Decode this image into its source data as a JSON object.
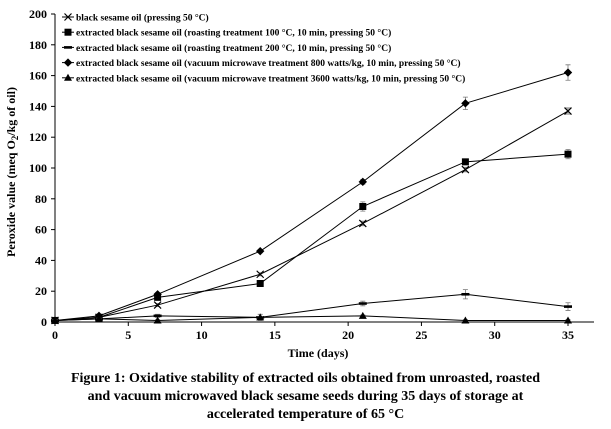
{
  "chart_data": {
    "type": "line",
    "xlabel": "Time (days)",
    "ylabel": "Peroxide value (meq O₂/kg of oil)",
    "xlim": [
      0,
      35
    ],
    "ylim": [
      0,
      200
    ],
    "x_ticks": [
      0,
      5,
      10,
      15,
      20,
      25,
      30,
      35
    ],
    "y_ticks": [
      0,
      20,
      40,
      60,
      80,
      100,
      120,
      140,
      160,
      180,
      200
    ],
    "grid": false,
    "legend_position": "top-left",
    "series": [
      {
        "name": "black sesame oil (pressing 50 °C)",
        "marker": "x",
        "x": [
          0,
          3,
          7,
          14,
          21,
          28,
          35
        ],
        "y": [
          1,
          3,
          11,
          31,
          64,
          99,
          137
        ],
        "error": [
          0.5,
          0.5,
          1,
          1,
          1.5,
          1.5,
          2
        ]
      },
      {
        "name": "extracted black sesame oil (roasting treatment 100 °C, 10 min, pressing 50 °C)",
        "marker": "square",
        "x": [
          0,
          3,
          7,
          14,
          21,
          28,
          35
        ],
        "y": [
          1,
          3,
          16,
          25,
          75,
          104,
          109
        ],
        "error": [
          0.5,
          0.5,
          1,
          2,
          3,
          1.5,
          3
        ]
      },
      {
        "name": "extracted black sesame oil (roasting treatment 200 °C, 10 min, pressing 50 °C)",
        "marker": "dash",
        "x": [
          0,
          3,
          7,
          14,
          21,
          28,
          35
        ],
        "y": [
          1,
          2,
          4,
          3,
          12,
          18,
          10
        ],
        "error": [
          0.5,
          0.5,
          1,
          2,
          1.5,
          3,
          2.5
        ]
      },
      {
        "name": "extracted black sesame oil (vacuum microwave treatment 800 watts/kg, 10 min, pressing 50 °C)",
        "marker": "diamond",
        "x": [
          0,
          3,
          7,
          14,
          21,
          28,
          35
        ],
        "y": [
          1,
          4,
          18,
          46,
          91,
          142,
          162
        ],
        "error": [
          0.5,
          0.5,
          1,
          1,
          1.5,
          4,
          5
        ]
      },
      {
        "name": "extracted black sesame oil (vacuum microwave treatment 3600 watts/kg, 10 min, pressing 50 °C)",
        "marker": "triangle",
        "x": [
          0,
          3,
          7,
          14,
          21,
          28,
          35
        ],
        "y": [
          1,
          2,
          1,
          3,
          4,
          1,
          1
        ],
        "error": [
          0.5,
          0.5,
          0.5,
          0.5,
          0.5,
          0.5,
          0.5
        ]
      }
    ]
  },
  "caption": {
    "line1": "Figure 1: Oxidative stability of extracted oils obtained from unroasted, roasted",
    "line2": "and vacuum microwaved black sesame seeds during 35 days of storage at",
    "line3": "accelerated temperature of 65 °C"
  }
}
